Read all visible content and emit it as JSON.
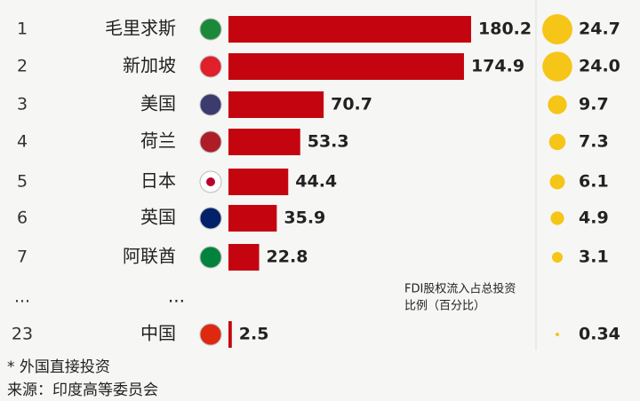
{
  "chart_data": {
    "type": "bar",
    "orientation": "horizontal",
    "ranks": [
      "1",
      "2",
      "3",
      "4",
      "5",
      "6",
      "7",
      "...",
      "23"
    ],
    "categories": [
      "毛里求斯",
      "新加坡",
      "美国",
      "荷兰",
      "日本",
      "英国",
      "阿联酋",
      "...",
      "中国"
    ],
    "values": [
      180.2,
      174.9,
      70.7,
      53.3,
      44.4,
      35.9,
      22.8,
      null,
      2.5
    ],
    "color": "#c40510",
    "share": {
      "label_lines": [
        "FDI股权流入占总投资",
        "比例（百分比）"
      ],
      "color": "#f5c518",
      "values": [
        24.7,
        24.0,
        9.7,
        7.3,
        6.1,
        4.9,
        3.1,
        null,
        0.34
      ],
      "value_labels": [
        "24.7",
        "24.0",
        "9.7",
        "7.3",
        "6.1",
        "4.9",
        "3.1",
        null,
        "0.34"
      ]
    },
    "footnotes": [
      "* 外国直接投资",
      "来源：印度高等委员会"
    ]
  }
}
